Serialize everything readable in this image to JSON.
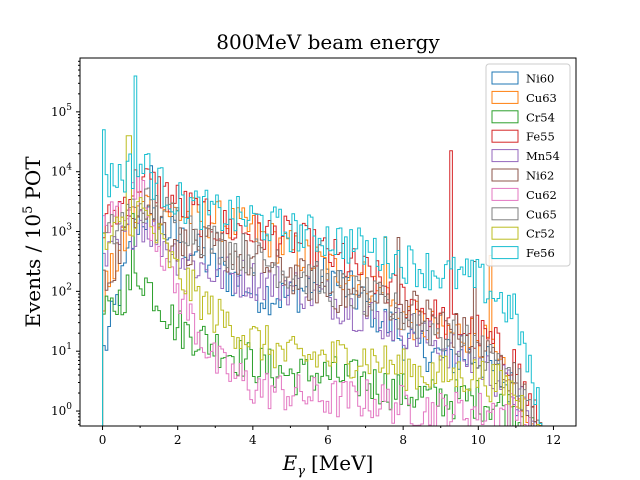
{
  "chart_data": {
    "type": "histogram-step",
    "title": "800MeV beam energy",
    "xlabel": "E",
    "xlabel_sub": "γ",
    "xlabel_units": "[MeV]",
    "ylabel": "Events / 10",
    "ylabel_sup": "5",
    "ylabel_suffix": "POT",
    "yscale": "log",
    "xlim": [
      -0.6,
      12.6
    ],
    "ylim_log10": [
      -0.25,
      5.9
    ],
    "xticks": [
      0,
      2,
      4,
      6,
      8,
      10,
      12
    ],
    "xtick_labels": [
      "0",
      "2",
      "4",
      "6",
      "8",
      "10",
      "12"
    ],
    "yticks_log10": [
      0,
      1,
      2,
      3,
      4,
      5
    ],
    "ytick_labels": [
      {
        "base": "10",
        "exp": "0"
      },
      {
        "base": "10",
        "exp": "1"
      },
      {
        "base": "10",
        "exp": "2"
      },
      {
        "base": "10",
        "exp": "3"
      },
      {
        "base": "10",
        "exp": "4"
      },
      {
        "base": "10",
        "exp": "5"
      }
    ],
    "legend_position": "top-right",
    "series": [
      {
        "name": "Ni60",
        "color": "#1f77b4",
        "bins": [
          [
            0,
            0.9
          ],
          [
            1,
            3.3
          ],
          [
            2,
            2.9
          ],
          [
            3,
            2.4
          ],
          [
            4,
            2.0
          ],
          [
            5,
            1.9
          ],
          [
            6,
            2.3
          ],
          [
            7,
            1.8
          ],
          [
            8,
            1.2
          ],
          [
            9,
            0.9
          ],
          [
            10,
            0.9
          ],
          [
            11,
            0.3
          ],
          [
            12,
            -1
          ]
        ],
        "spikes": [
          [
            1.3,
            4.1
          ]
        ]
      },
      {
        "name": "Cu63",
        "color": "#ff7f0e",
        "bins": [
          [
            0,
            1.9
          ],
          [
            1,
            3.5
          ],
          [
            2,
            3.3
          ],
          [
            3,
            3.2
          ],
          [
            4,
            3.0
          ],
          [
            5,
            2.7
          ],
          [
            6,
            2.4
          ],
          [
            7,
            2.2
          ],
          [
            8,
            1.6
          ],
          [
            9,
            1.3
          ],
          [
            10,
            1.3
          ],
          [
            11,
            0.2
          ],
          [
            12,
            -1
          ]
        ],
        "spikes": [
          [
            7.5,
            2.9
          ],
          [
            10.3,
            2.6
          ]
        ]
      },
      {
        "name": "Cr54",
        "color": "#2ca02c",
        "bins": [
          [
            0,
            1.5
          ],
          [
            1,
            2.3
          ],
          [
            2,
            1.4
          ],
          [
            3,
            1.1
          ],
          [
            4,
            0.8
          ],
          [
            5,
            0.6
          ],
          [
            6,
            0.6
          ],
          [
            7,
            0.5
          ],
          [
            8,
            0.3
          ],
          [
            9,
            0.2
          ],
          [
            10,
            0.2
          ],
          [
            11,
            0.0
          ],
          [
            12,
            -1
          ]
        ],
        "spikes": [
          [
            0.8,
            3.3
          ]
        ]
      },
      {
        "name": "Fe55",
        "color": "#d62728",
        "bins": [
          [
            0,
            3.0
          ],
          [
            1,
            3.9
          ],
          [
            2,
            3.5
          ],
          [
            3,
            3.1
          ],
          [
            4,
            3.0
          ],
          [
            5,
            2.9
          ],
          [
            6,
            2.6
          ],
          [
            7,
            2.3
          ],
          [
            8,
            1.9
          ],
          [
            9,
            1.5
          ],
          [
            10,
            1.3
          ],
          [
            11,
            0.8
          ],
          [
            12,
            -1
          ]
        ],
        "spikes": [
          [
            9.3,
            4.35
          ],
          [
            6.4,
            2.8
          ]
        ]
      },
      {
        "name": "Mn54",
        "color": "#9467bd",
        "bins": [
          [
            0,
            2.4
          ],
          [
            1,
            3.2
          ],
          [
            2,
            2.6
          ],
          [
            3,
            2.3
          ],
          [
            4,
            2.2
          ],
          [
            5,
            2.1
          ],
          [
            6,
            1.9
          ],
          [
            7,
            1.6
          ],
          [
            8,
            1.4
          ],
          [
            9,
            1.1
          ],
          [
            10,
            0.8
          ],
          [
            11,
            0.3
          ],
          [
            12,
            -1
          ]
        ],
        "spikes": []
      },
      {
        "name": "Ni62",
        "color": "#8c564b",
        "bins": [
          [
            0,
            2.0
          ],
          [
            1,
            3.6
          ],
          [
            2,
            2.8
          ],
          [
            3,
            2.7
          ],
          [
            4,
            2.5
          ],
          [
            5,
            2.3
          ],
          [
            6,
            2.0
          ],
          [
            7,
            1.9
          ],
          [
            8,
            1.8
          ],
          [
            9,
            1.5
          ],
          [
            10,
            1.1
          ],
          [
            11,
            0.5
          ],
          [
            12,
            -1
          ]
        ],
        "spikes": [
          [
            7.9,
            2.9
          ],
          [
            9.9,
            2.5
          ]
        ]
      },
      {
        "name": "Cu62",
        "color": "#e377c2",
        "bins": [
          [
            0,
            3.1
          ],
          [
            1,
            3.7
          ],
          [
            2,
            2.0
          ],
          [
            3,
            0.8
          ],
          [
            4,
            0.4
          ],
          [
            5,
            0.3
          ],
          [
            6,
            0.2
          ],
          [
            7,
            0.2
          ],
          [
            8,
            0.1
          ],
          [
            9,
            0.0
          ],
          [
            10,
            0.0
          ],
          [
            11,
            0.0
          ],
          [
            12,
            -1
          ]
        ],
        "spikes": []
      },
      {
        "name": "Cu65",
        "color": "#7f7f7f",
        "bins": [
          [
            0,
            2.8
          ],
          [
            1,
            3.5
          ],
          [
            2,
            3.2
          ],
          [
            3,
            2.8
          ],
          [
            4,
            2.6
          ],
          [
            5,
            2.3
          ],
          [
            6,
            2.1
          ],
          [
            7,
            1.9
          ],
          [
            8,
            1.6
          ],
          [
            9,
            1.3
          ],
          [
            10,
            1.0
          ],
          [
            11,
            0.5
          ],
          [
            12,
            -1
          ]
        ],
        "spikes": []
      },
      {
        "name": "Cr52",
        "color": "#bcbd22",
        "bins": [
          [
            0,
            2.7
          ],
          [
            1,
            3.4
          ],
          [
            2,
            2.3
          ],
          [
            3,
            1.6
          ],
          [
            4,
            1.2
          ],
          [
            5,
            0.9
          ],
          [
            6,
            0.9
          ],
          [
            7,
            0.9
          ],
          [
            8,
            0.7
          ],
          [
            9,
            0.6
          ],
          [
            10,
            0.6
          ],
          [
            11,
            0.3
          ],
          [
            12,
            -1
          ]
        ],
        "spikes": [
          [
            0.7,
            4.6
          ]
        ]
      },
      {
        "name": "Fe56",
        "color": "#17becf",
        "bins": [
          [
            0,
            3.8
          ],
          [
            1,
            4.1
          ],
          [
            2,
            3.5
          ],
          [
            3,
            3.3
          ],
          [
            4,
            3.2
          ],
          [
            5,
            3.0
          ],
          [
            6,
            2.9
          ],
          [
            7,
            2.7
          ],
          [
            8,
            2.5
          ],
          [
            9,
            2.3
          ],
          [
            10,
            2.2
          ],
          [
            11,
            1.6
          ],
          [
            12,
            -1
          ]
        ],
        "spikes": [
          [
            0.85,
            5.6
          ],
          [
            0.0,
            4.7
          ],
          [
            1.2,
            4.3
          ]
        ]
      }
    ]
  }
}
